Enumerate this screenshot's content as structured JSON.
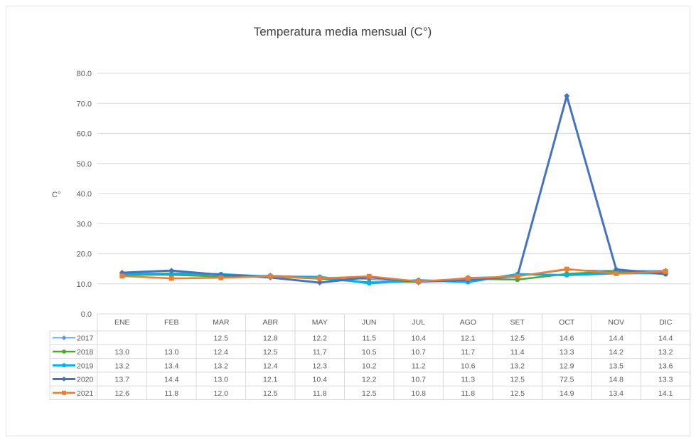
{
  "chart_data": {
    "type": "line",
    "title": "Temperatura media mensual (C°)",
    "ylabel": "C°",
    "xlabel": "",
    "ylim": [
      0,
      80
    ],
    "yticks": [
      "0.0",
      "10.0",
      "20.0",
      "30.0",
      "40.0",
      "50.0",
      "60.0",
      "70.0",
      "80.0"
    ],
    "grid": true,
    "legend": "data table",
    "categories": [
      "ENE",
      "FEB",
      "MAR",
      "ABR",
      "MAY",
      "JUN",
      "JUL",
      "AGO",
      "SET",
      "OCT",
      "NOV",
      "DIC"
    ],
    "series": [
      {
        "name": "2017",
        "color": "#5b9bd5",
        "width": 1.5,
        "marker": "diamond",
        "values": [
          null,
          null,
          12.5,
          12.8,
          12.2,
          11.5,
          10.4,
          12.1,
          12.5,
          14.6,
          14.4,
          14.4
        ],
        "labels": [
          "",
          "",
          "12.5",
          "12.8",
          "12.2",
          "11.5",
          "10.4",
          "12.1",
          "12.5",
          "14.6",
          "14.4",
          "14.4"
        ]
      },
      {
        "name": "2018",
        "color": "#4ea72e",
        "width": 2.5,
        "marker": "circle",
        "values": [
          13.0,
          13.0,
          12.4,
          12.5,
          11.7,
          10.5,
          10.7,
          11.7,
          11.4,
          13.3,
          14.2,
          13.2
        ],
        "labels": [
          "13.0",
          "13.0",
          "12.4",
          "12.5",
          "11.7",
          "10.5",
          "10.7",
          "11.7",
          "11.4",
          "13.3",
          "14.2",
          "13.2"
        ]
      },
      {
        "name": "2019",
        "color": "#00b0f0",
        "width": 3,
        "marker": "circle",
        "values": [
          13.2,
          13.4,
          13.2,
          12.4,
          12.3,
          10.2,
          11.2,
          10.6,
          13.2,
          12.9,
          13.5,
          13.6
        ],
        "labels": [
          "13.2",
          "13.4",
          "13.2",
          "12.4",
          "12.3",
          "10.2",
          "11.2",
          "10.6",
          "13.2",
          "12.9",
          "13.5",
          "13.6"
        ]
      },
      {
        "name": "2020",
        "color": "#4472c4",
        "width": 3,
        "marker": "diamond",
        "values": [
          13.7,
          14.4,
          13.0,
          12.1,
          10.4,
          12.2,
          10.7,
          11.3,
          12.5,
          72.5,
          14.8,
          13.3
        ],
        "labels": [
          "13.7",
          "14.4",
          "13.0",
          "12.1",
          "10.4",
          "12.2",
          "10.7",
          "11.3",
          "12.5",
          "72.5",
          "14.8",
          "13.3"
        ]
      },
      {
        "name": "2021",
        "color": "#ed7d31",
        "width": 2.5,
        "marker": "square",
        "values": [
          12.6,
          11.8,
          12.0,
          12.5,
          11.8,
          12.5,
          10.8,
          11.8,
          12.5,
          14.9,
          13.4,
          14.1
        ],
        "labels": [
          "12.6",
          "11.8",
          "12.0",
          "12.5",
          "11.8",
          "12.5",
          "10.8",
          "11.8",
          "12.5",
          "14.9",
          "13.4",
          "14.1"
        ]
      }
    ]
  }
}
